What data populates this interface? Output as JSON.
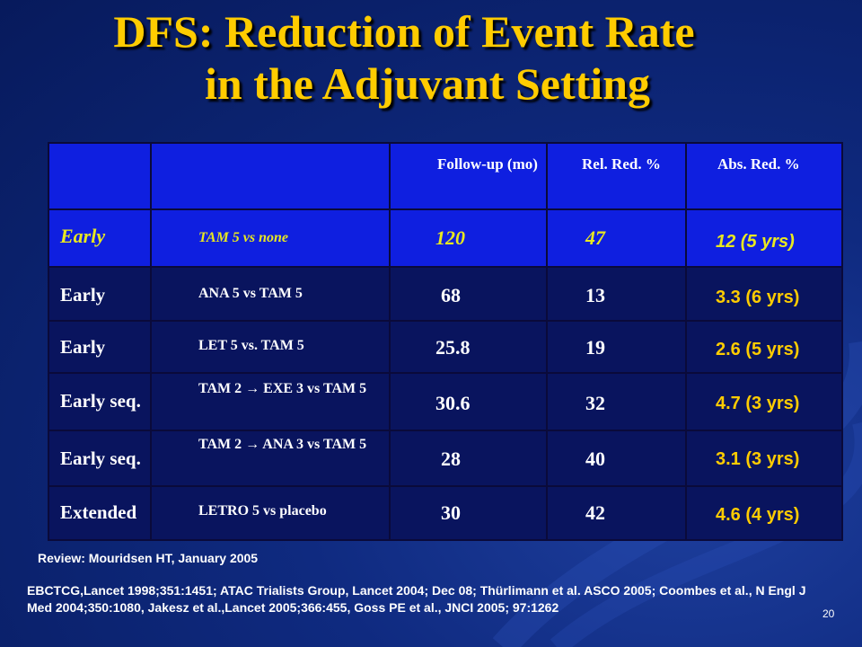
{
  "slide": {
    "title_line1": "DFS: Reduction of Event Rate",
    "title_line2": "in the Adjuvant Setting",
    "page_number": "20"
  },
  "table": {
    "headers": [
      "",
      "",
      "Follow-up (mo)",
      "Rel. Red. %",
      "Abs. Red. %"
    ],
    "rows": [
      {
        "category": "Early",
        "treatment": "TAM 5 vs none",
        "followup": "120",
        "rel_red": "47",
        "abs_red": "12 (5 yrs)"
      },
      {
        "category": "Early",
        "treatment": "ANA 5 vs TAM 5",
        "followup": "68",
        "rel_red": "13",
        "abs_red": "3.3 (6 yrs)"
      },
      {
        "category": "Early",
        "treatment": "LET 5 vs. TAM 5",
        "followup": "25.8",
        "rel_red": "19",
        "abs_red": "2.6 (5 yrs)"
      },
      {
        "category": "Early seq.",
        "treatment": "TAM 2 → EXE 3 vs TAM 5",
        "followup": "30.6",
        "rel_red": "32",
        "abs_red": "4.7 (3 yrs)"
      },
      {
        "category": "Early seq.",
        "treatment": "TAM 2 → ANA 3 vs TAM 5",
        "followup": "28",
        "rel_red": "40",
        "abs_red": "3.1 (3 yrs)"
      },
      {
        "category": "Extended",
        "treatment": "LETRO 5 vs placebo",
        "followup": "30",
        "rel_red": "42",
        "abs_red": "4.6 (4 yrs)"
      }
    ]
  },
  "footnotes": {
    "review": "Review: Mouridsen HT, January 2005",
    "references": "EBCTCG,Lancet 1998;351:1451; ATAC Trialists Group, Lancet 2004; Dec 08; Thürlimann et al. ASCO 2005; Coombes et al., N Engl J Med 2004;350:1080, Jakesz et al.,Lancet 2005;366:455, Goss PE et al., JNCI 2005; 97:1262"
  },
  "colors": {
    "title": "#ffcc00",
    "header_fill": "#0f1fe0",
    "row_fill": "#09145e",
    "highlight_text": "#e8e820",
    "abs_text": "#ffcc00"
  }
}
